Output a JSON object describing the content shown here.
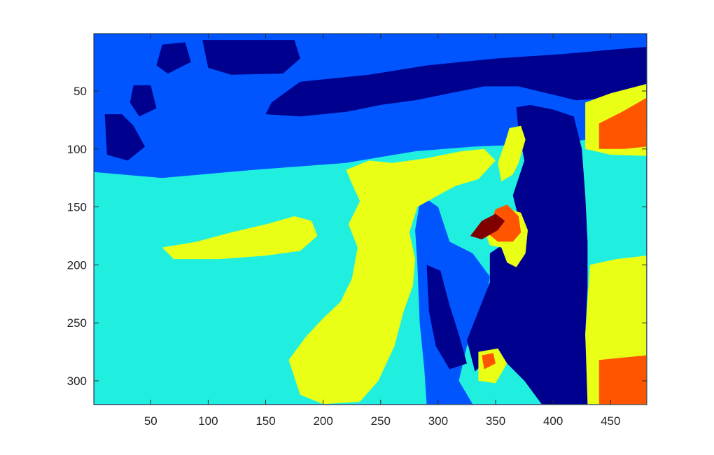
{
  "chart_data": {
    "type": "heatmap",
    "title": "",
    "xlabel": "",
    "ylabel": "",
    "colormap": "jet",
    "image_size": {
      "cols": 481,
      "rows": 320
    },
    "xlim": [
      0.5,
      481.5
    ],
    "ylim": [
      0.5,
      320.5
    ],
    "y_reversed": true,
    "xticks": [
      50,
      100,
      150,
      200,
      250,
      300,
      350,
      400,
      450
    ],
    "xtick_labels": [
      "50",
      "100",
      "150",
      "200",
      "250",
      "300",
      "350",
      "400",
      "450"
    ],
    "yticks": [
      50,
      100,
      150,
      200,
      250,
      300
    ],
    "ytick_labels": [
      "50",
      "100",
      "150",
      "200",
      "250",
      "300"
    ],
    "levels": [
      {
        "level": 1,
        "color": "#00008f"
      },
      {
        "level": 2,
        "color": "#0055ff"
      },
      {
        "level": 3,
        "color": "#20efdf"
      },
      {
        "level": 4,
        "color": "#e9ff16"
      },
      {
        "level": 5,
        "color": "#ff5500"
      },
      {
        "level": 6,
        "color": "#800000"
      }
    ],
    "regions": [
      {
        "level": 3,
        "points": [
          [
            1,
            120
          ],
          [
            60,
            125
          ],
          [
            140,
            118
          ],
          [
            220,
            112
          ],
          [
            280,
            102
          ],
          [
            330,
            98
          ],
          [
            380,
            96
          ],
          [
            420,
            93
          ],
          [
            470,
            88
          ],
          [
            481,
            84
          ],
          [
            481,
            320
          ],
          [
            1,
            320
          ]
        ]
      },
      {
        "level": 1,
        "points": [
          [
            95,
            6
          ],
          [
            175,
            6
          ],
          [
            180,
            22
          ],
          [
            165,
            35
          ],
          [
            120,
            36
          ],
          [
            100,
            30
          ]
        ]
      },
      {
        "level": 1,
        "points": [
          [
            60,
            10
          ],
          [
            80,
            8
          ],
          [
            85,
            25
          ],
          [
            65,
            35
          ],
          [
            55,
            28
          ]
        ]
      },
      {
        "level": 1,
        "points": [
          [
            155,
            60
          ],
          [
            180,
            42
          ],
          [
            240,
            36
          ],
          [
            290,
            28
          ],
          [
            350,
            22
          ],
          [
            410,
            18
          ],
          [
            455,
            14
          ],
          [
            481,
            12
          ],
          [
            481,
            55
          ],
          [
            450,
            56
          ],
          [
            420,
            58
          ],
          [
            395,
            52
          ],
          [
            370,
            46
          ],
          [
            340,
            46
          ],
          [
            310,
            52
          ],
          [
            280,
            58
          ],
          [
            250,
            62
          ],
          [
            220,
            68
          ],
          [
            180,
            72
          ],
          [
            150,
            70
          ]
        ]
      },
      {
        "level": 1,
        "points": [
          [
            35,
            45
          ],
          [
            50,
            45
          ],
          [
            55,
            65
          ],
          [
            40,
            72
          ],
          [
            32,
            60
          ]
        ]
      },
      {
        "level": 1,
        "points": [
          [
            10,
            70
          ],
          [
            25,
            70
          ],
          [
            35,
            80
          ],
          [
            45,
            98
          ],
          [
            30,
            110
          ],
          [
            12,
            105
          ]
        ]
      },
      {
        "level": 2,
        "points": [
          [
            285,
            140
          ],
          [
            300,
            150
          ],
          [
            310,
            180
          ],
          [
            330,
            190
          ],
          [
            345,
            210
          ],
          [
            340,
            240
          ],
          [
            325,
            270
          ],
          [
            318,
            300
          ],
          [
            330,
            320
          ],
          [
            290,
            320
          ],
          [
            288,
            290
          ],
          [
            284,
            250
          ],
          [
            282,
            200
          ],
          [
            280,
            170
          ]
        ]
      },
      {
        "level": 1,
        "points": [
          [
            368,
            64
          ],
          [
            380,
            62
          ],
          [
            400,
            66
          ],
          [
            418,
            72
          ],
          [
            425,
            100
          ],
          [
            428,
            140
          ],
          [
            430,
            180
          ],
          [
            430,
            220
          ],
          [
            428,
            260
          ],
          [
            430,
            300
          ],
          [
            430,
            320
          ],
          [
            390,
            320
          ],
          [
            375,
            300
          ],
          [
            360,
            285
          ],
          [
            345,
            280
          ],
          [
            332,
            292
          ],
          [
            325,
            265
          ],
          [
            335,
            240
          ],
          [
            345,
            215
          ],
          [
            345,
            190
          ],
          [
            360,
            180
          ],
          [
            370,
            160
          ],
          [
            365,
            140
          ],
          [
            375,
            110
          ],
          [
            370,
            85
          ]
        ]
      },
      {
        "level": 1,
        "points": [
          [
            290,
            200
          ],
          [
            302,
            205
          ],
          [
            310,
            235
          ],
          [
            318,
            260
          ],
          [
            325,
            285
          ],
          [
            310,
            290
          ],
          [
            298,
            270
          ],
          [
            292,
            240
          ]
        ]
      },
      {
        "level": 4,
        "points": [
          [
            60,
            185
          ],
          [
            90,
            180
          ],
          [
            120,
            172
          ],
          [
            150,
            165
          ],
          [
            175,
            158
          ],
          [
            190,
            162
          ],
          [
            195,
            175
          ],
          [
            180,
            188
          ],
          [
            150,
            192
          ],
          [
            110,
            195
          ],
          [
            70,
            195
          ]
        ]
      },
      {
        "level": 4,
        "points": [
          [
            220,
            118
          ],
          [
            240,
            110
          ],
          [
            260,
            112
          ],
          [
            290,
            108
          ],
          [
            320,
            102
          ],
          [
            340,
            100
          ],
          [
            350,
            110
          ],
          [
            335,
            126
          ],
          [
            315,
            132
          ],
          [
            300,
            140
          ],
          [
            282,
            150
          ],
          [
            275,
            172
          ],
          [
            280,
            195
          ],
          [
            278,
            218
          ],
          [
            270,
            240
          ],
          [
            262,
            270
          ],
          [
            248,
            300
          ],
          [
            232,
            318
          ],
          [
            200,
            320
          ],
          [
            180,
            312
          ],
          [
            170,
            282
          ],
          [
            185,
            262
          ],
          [
            200,
            246
          ],
          [
            215,
            232
          ],
          [
            225,
            212
          ],
          [
            230,
            185
          ],
          [
            222,
            165
          ],
          [
            232,
            145
          ],
          [
            225,
            130
          ]
        ]
      },
      {
        "level": 4,
        "points": [
          [
            340,
            170
          ],
          [
            355,
            150
          ],
          [
            372,
            155
          ],
          [
            378,
            170
          ],
          [
            376,
            190
          ],
          [
            368,
            202
          ],
          [
            360,
            198
          ],
          [
            355,
            185
          ],
          [
            345,
            183
          ]
        ]
      },
      {
        "level": 4,
        "points": [
          [
            335,
            275
          ],
          [
            352,
            272
          ],
          [
            360,
            285
          ],
          [
            350,
            302
          ],
          [
            335,
            300
          ]
        ]
      },
      {
        "level": 4,
        "points": [
          [
            362,
            82
          ],
          [
            372,
            80
          ],
          [
            376,
            92
          ],
          [
            370,
            112
          ],
          [
            365,
            122
          ],
          [
            355,
            128
          ],
          [
            352,
            112
          ],
          [
            358,
            95
          ]
        ]
      },
      {
        "level": 4,
        "points": [
          [
            428,
            60
          ],
          [
            450,
            52
          ],
          [
            481,
            44
          ],
          [
            481,
            106
          ],
          [
            450,
            105
          ],
          [
            428,
            100
          ]
        ]
      },
      {
        "level": 4,
        "points": [
          [
            432,
            200
          ],
          [
            455,
            195
          ],
          [
            481,
            192
          ],
          [
            481,
            320
          ],
          [
            430,
            320
          ],
          [
            428,
            260
          ]
        ]
      },
      {
        "level": 5,
        "points": [
          [
            342,
            172
          ],
          [
            350,
            152
          ],
          [
            360,
            148
          ],
          [
            370,
            158
          ],
          [
            372,
            172
          ],
          [
            365,
            180
          ],
          [
            352,
            180
          ]
        ]
      },
      {
        "level": 5,
        "points": [
          [
            440,
            78
          ],
          [
            460,
            68
          ],
          [
            481,
            56
          ],
          [
            481,
            98
          ],
          [
            462,
            100
          ],
          [
            440,
            100
          ]
        ]
      },
      {
        "level": 5,
        "points": [
          [
            440,
            282
          ],
          [
            481,
            278
          ],
          [
            481,
            320
          ],
          [
            440,
            320
          ]
        ]
      },
      {
        "level": 5,
        "points": [
          [
            338,
            278
          ],
          [
            348,
            276
          ],
          [
            350,
            285
          ],
          [
            340,
            290
          ]
        ]
      },
      {
        "level": 6,
        "points": [
          [
            328,
            175
          ],
          [
            338,
            162
          ],
          [
            350,
            156
          ],
          [
            358,
            162
          ],
          [
            352,
            170
          ],
          [
            338,
            178
          ]
        ]
      }
    ]
  }
}
